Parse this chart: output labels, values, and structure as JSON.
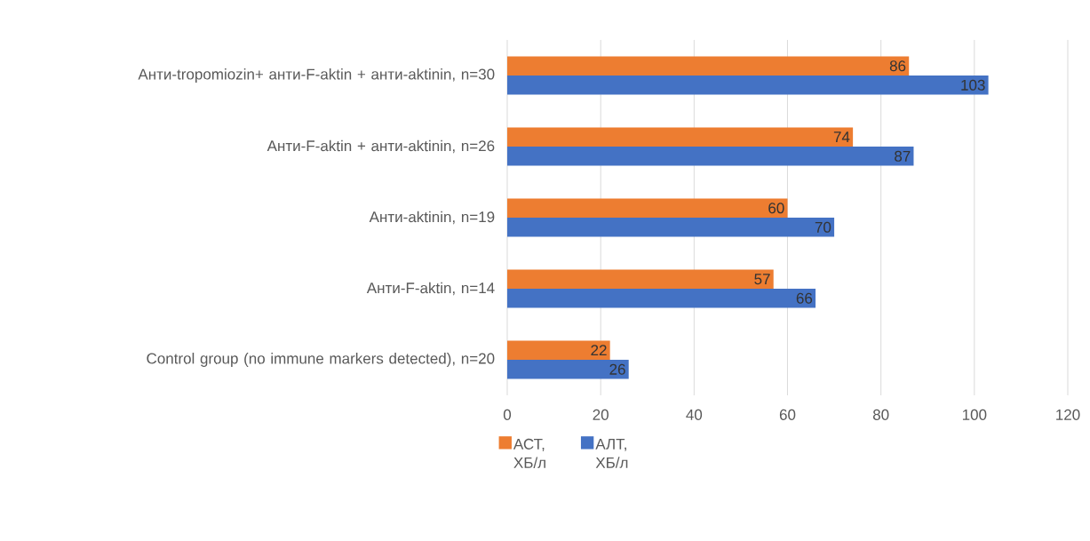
{
  "chart_data": {
    "type": "bar",
    "orientation": "horizontal",
    "categories": [
      "Анти-tropomiozin+ анти-F-aktin + анти-aktinin, n=30",
      "Анти-F-aktin + анти-aktinin, n=26",
      "Анти-aktinin, n=19",
      "Анти-F-aktin, n=14",
      "Control group (no immune markers detected), n=20"
    ],
    "series": [
      {
        "name": "АСТ, ХБ/л",
        "color": "#ed7d31",
        "values": [
          86,
          74,
          60,
          57,
          22
        ]
      },
      {
        "name": "АЛТ, ХБ/л",
        "color": "#4472c4",
        "values": [
          103,
          87,
          70,
          66,
          26
        ]
      }
    ],
    "xlim": [
      0,
      120
    ],
    "xticks": [
      0,
      20,
      40,
      60,
      80,
      100,
      120
    ],
    "grid": "x",
    "legend": "bottom left",
    "data_labels": true
  }
}
